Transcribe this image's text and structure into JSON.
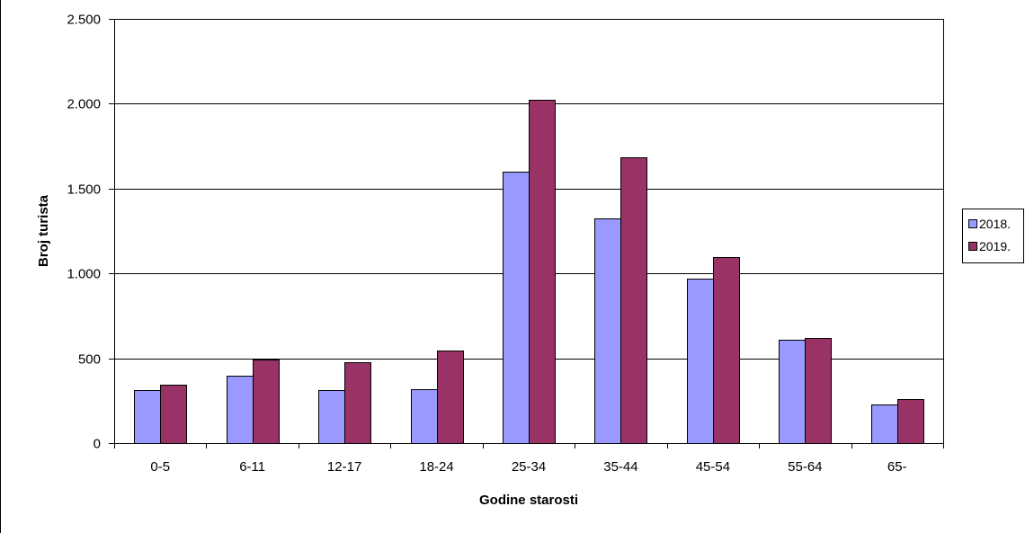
{
  "chart_data": {
    "type": "bar",
    "xlabel": "Godine starosti",
    "ylabel": "Broj turista",
    "categories": [
      "0-5",
      "6-11",
      "12-17",
      "18-24",
      "25-34",
      "35-44",
      "45-54",
      "55-64",
      "65-"
    ],
    "series": [
      {
        "name": "2018.",
        "color": "#9999ff",
        "values": [
          310,
          395,
          315,
          320,
          1600,
          1325,
          970,
          610,
          230
        ]
      },
      {
        "name": "2019.",
        "color": "#993366",
        "values": [
          345,
          495,
          475,
          545,
          2025,
          1685,
          1095,
          620,
          260
        ]
      }
    ],
    "ylim": [
      0,
      2500
    ],
    "yticks": [
      0,
      500,
      1000,
      1500,
      2000,
      2500
    ],
    "ytick_labels": [
      "0",
      "500",
      "1.000",
      "1.500",
      "2.000",
      "2.500"
    ],
    "grid": true,
    "legend_position": "right"
  }
}
